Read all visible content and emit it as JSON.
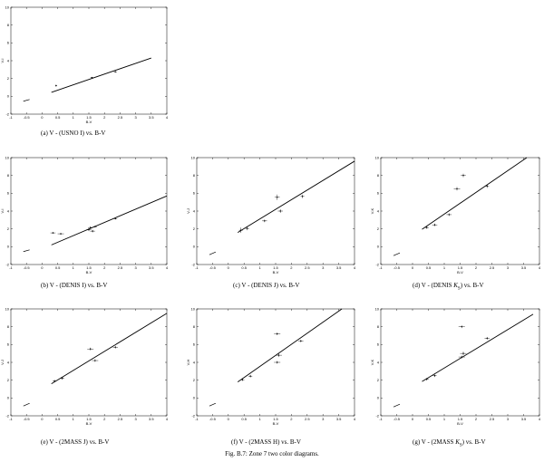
{
  "figure_caption": "Fig. B.7: Zone 7 two color diagrams.",
  "colors": {
    "axes": "#000000",
    "fit": "#000000",
    "points": "#000000"
  },
  "chart_data": [
    {
      "type": "scatter",
      "caption": "(a) V - (USNO I) vs. B-V",
      "xlabel": "B-V",
      "ylabel": "V-I",
      "xlim": [
        -1,
        4
      ],
      "ylim": [
        -2,
        10
      ],
      "xticks": [
        "-1",
        "-0.5",
        "0",
        "0.5",
        "1",
        "1.5",
        "2",
        "2.5",
        "3",
        "3.5",
        "4"
      ],
      "yticks": [
        "-2",
        "0",
        "2",
        "4",
        "6",
        "8",
        "10"
      ],
      "fit_line": {
        "x": [
          0.3,
          3.5
        ],
        "y": [
          0.45,
          4.3
        ]
      },
      "ref_line": {
        "x": [
          -0.6,
          -0.4
        ],
        "y": [
          -0.55,
          -0.35
        ]
      },
      "points": [
        {
          "x": 0.45,
          "y": 1.2,
          "xerr": 0.03,
          "yerr": 0.12
        },
        {
          "x": 1.6,
          "y": 2.1,
          "xerr": 0.05,
          "yerr": 0.08
        },
        {
          "x": 2.35,
          "y": 2.75,
          "xerr": 0.05,
          "yerr": 0.08
        }
      ]
    },
    {
      "type": "scatter",
      "caption": "(b) V - (DENIS I) vs. B-V",
      "xlabel": "B-V",
      "ylabel": "V-I",
      "xlim": [
        -1,
        4
      ],
      "ylim": [
        -2,
        10
      ],
      "xticks": [
        "-1",
        "-0.5",
        "0",
        "0.5",
        "1",
        "1.5",
        "2",
        "2.5",
        "3",
        "3.5",
        "4"
      ],
      "yticks": [
        "-2",
        "0",
        "2",
        "4",
        "6",
        "8",
        "10"
      ],
      "fit_line": {
        "x": [
          0.3,
          4.0
        ],
        "y": [
          0.2,
          5.7
        ]
      },
      "ref_line": {
        "x": [
          -0.6,
          -0.4
        ],
        "y": [
          -0.55,
          -0.35
        ]
      },
      "points": [
        {
          "x": 0.35,
          "y": 1.55,
          "xerr": 0.08,
          "yerr": 0.1
        },
        {
          "x": 0.6,
          "y": 1.45,
          "xerr": 0.1,
          "yerr": 0.1
        },
        {
          "x": 1.5,
          "y": 1.9,
          "xerr": 0.08,
          "yerr": 0.15
        },
        {
          "x": 1.55,
          "y": 2.15,
          "xerr": 0.08,
          "yerr": 0.12
        },
        {
          "x": 1.62,
          "y": 1.75,
          "xerr": 0.08,
          "yerr": 0.15
        },
        {
          "x": 1.7,
          "y": 2.25,
          "xerr": 0.06,
          "yerr": 0.1
        },
        {
          "x": 2.35,
          "y": 3.15,
          "xerr": 0.06,
          "yerr": 0.1
        }
      ]
    },
    {
      "type": "scatter",
      "caption": "(c) V - (DENIS J) vs. B-V",
      "xlabel": "B-V",
      "ylabel": "V-J",
      "xlim": [
        -1,
        4
      ],
      "ylim": [
        -2,
        10
      ],
      "xticks": [
        "-1",
        "-0.5",
        "0",
        "0.5",
        "1",
        "1.5",
        "2",
        "2.5",
        "3",
        "3.5",
        "4"
      ],
      "yticks": [
        "-2",
        "0",
        "2",
        "4",
        "6",
        "8",
        "10"
      ],
      "fit_line": {
        "x": [
          0.3,
          4.0
        ],
        "y": [
          1.6,
          9.6
        ]
      },
      "ref_line": {
        "x": [
          -0.6,
          -0.4
        ],
        "y": [
          -0.9,
          -0.6
        ]
      },
      "points": [
        {
          "x": 0.4,
          "y": 1.85,
          "xerr": 0.06,
          "yerr": 0.3
        },
        {
          "x": 0.6,
          "y": 2.05,
          "xerr": 0.06,
          "yerr": 0.2
        },
        {
          "x": 1.15,
          "y": 2.9,
          "xerr": 0.08,
          "yerr": 0.15
        },
        {
          "x": 1.55,
          "y": 5.55,
          "xerr": 0.08,
          "yerr": 0.3
        },
        {
          "x": 1.65,
          "y": 4.0,
          "xerr": 0.08,
          "yerr": 0.2
        },
        {
          "x": 2.35,
          "y": 5.65,
          "xerr": 0.06,
          "yerr": 0.2
        }
      ]
    },
    {
      "type": "scatter",
      "caption": "(d) V - (DENIS K_S) vs. B-V",
      "xlabel": "B-V",
      "ylabel": "V-K",
      "xlim": [
        -1,
        4
      ],
      "ylim": [
        -2,
        10
      ],
      "xticks": [
        "-1",
        "-0.5",
        "0",
        "0.5",
        "1",
        "1.5",
        "2",
        "2.5",
        "3",
        "3.5",
        "4"
      ],
      "yticks": [
        "-2",
        "0",
        "2",
        "4",
        "6",
        "8",
        "10"
      ],
      "fit_line": {
        "x": [
          0.3,
          3.6
        ],
        "y": [
          1.95,
          10.0
        ]
      },
      "ref_line": {
        "x": [
          -0.6,
          -0.4
        ],
        "y": [
          -1.0,
          -0.7
        ]
      },
      "points": [
        {
          "x": 0.45,
          "y": 2.15,
          "xerr": 0.06,
          "yerr": 0.15
        },
        {
          "x": 0.7,
          "y": 2.45,
          "xerr": 0.08,
          "yerr": 0.15
        },
        {
          "x": 1.15,
          "y": 3.6,
          "xerr": 0.08,
          "yerr": 0.15
        },
        {
          "x": 1.4,
          "y": 6.5,
          "xerr": 0.1,
          "yerr": 0.2
        },
        {
          "x": 1.6,
          "y": 8.0,
          "xerr": 0.08,
          "yerr": 0.2
        },
        {
          "x": 2.35,
          "y": 6.8,
          "xerr": 0.06,
          "yerr": 0.2
        }
      ]
    },
    {
      "type": "scatter",
      "caption": "(e) V - (2MASS J) vs. B-V",
      "xlabel": "B-V",
      "ylabel": "V-J",
      "xlim": [
        -1,
        4
      ],
      "ylim": [
        -2,
        10
      ],
      "xticks": [
        "-1",
        "-0.5",
        "0",
        "0.5",
        "1",
        "1.5",
        "2",
        "2.5",
        "3",
        "3.5",
        "4"
      ],
      "yticks": [
        "-2",
        "0",
        "2",
        "4",
        "6",
        "8",
        "10"
      ],
      "fit_line": {
        "x": [
          0.3,
          4.0
        ],
        "y": [
          1.6,
          9.5
        ]
      },
      "ref_line": {
        "x": [
          -0.6,
          -0.4
        ],
        "y": [
          -0.9,
          -0.6
        ]
      },
      "points": [
        {
          "x": 0.4,
          "y": 1.9,
          "xerr": 0.06,
          "yerr": 0.15
        },
        {
          "x": 0.65,
          "y": 2.2,
          "xerr": 0.06,
          "yerr": 0.15
        },
        {
          "x": 1.55,
          "y": 5.5,
          "xerr": 0.1,
          "yerr": 0.15
        },
        {
          "x": 1.7,
          "y": 4.2,
          "xerr": 0.1,
          "yerr": 0.15
        },
        {
          "x": 2.35,
          "y": 5.7,
          "xerr": 0.08,
          "yerr": 0.15
        }
      ]
    },
    {
      "type": "scatter",
      "caption": "(f) V - (2MASS H) vs. B-V",
      "xlabel": "B-V",
      "ylabel": "V-H",
      "xlim": [
        -1,
        4
      ],
      "ylim": [
        -2,
        10
      ],
      "xticks": [
        "-1",
        "-0.5",
        "0",
        "0.5",
        "1",
        "1.5",
        "2",
        "2.5",
        "3",
        "3.5",
        "4"
      ],
      "yticks": [
        "-2",
        "0",
        "2",
        "4",
        "6",
        "8",
        "10"
      ],
      "fit_line": {
        "x": [
          0.3,
          3.6
        ],
        "y": [
          1.8,
          10.0
        ]
      },
      "ref_line": {
        "x": [
          -0.6,
          -0.4
        ],
        "y": [
          -0.9,
          -0.6
        ]
      },
      "points": [
        {
          "x": 0.45,
          "y": 2.05,
          "xerr": 0.06,
          "yerr": 0.15
        },
        {
          "x": 0.7,
          "y": 2.45,
          "xerr": 0.06,
          "yerr": 0.15
        },
        {
          "x": 1.55,
          "y": 7.2,
          "xerr": 0.1,
          "yerr": 0.15
        },
        {
          "x": 1.6,
          "y": 4.8,
          "xerr": 0.1,
          "yerr": 0.2
        },
        {
          "x": 1.55,
          "y": 4.0,
          "xerr": 0.1,
          "yerr": 0.15
        },
        {
          "x": 2.3,
          "y": 6.4,
          "xerr": 0.08,
          "yerr": 0.15
        }
      ]
    },
    {
      "type": "scatter",
      "caption": "(g) V - (2MASS K_S) vs. B-V",
      "xlabel": "B-V",
      "ylabel": "V-K",
      "xlim": [
        -1,
        4
      ],
      "ylim": [
        -2,
        10
      ],
      "xticks": [
        "-1",
        "-0.5",
        "0",
        "0.5",
        "1",
        "1.5",
        "2",
        "2.5",
        "3",
        "3.5",
        "4"
      ],
      "yticks": [
        "-2",
        "0",
        "2",
        "4",
        "6",
        "8",
        "10"
      ],
      "fit_line": {
        "x": [
          0.3,
          3.8
        ],
        "y": [
          1.85,
          9.4
        ]
      },
      "ref_line": {
        "x": [
          -0.6,
          -0.4
        ],
        "y": [
          -1.0,
          -0.7
        ]
      },
      "points": [
        {
          "x": 0.45,
          "y": 2.1,
          "xerr": 0.06,
          "yerr": 0.15
        },
        {
          "x": 0.7,
          "y": 2.5,
          "xerr": 0.06,
          "yerr": 0.15
        },
        {
          "x": 1.55,
          "y": 8.0,
          "xerr": 0.1,
          "yerr": 0.15
        },
        {
          "x": 1.6,
          "y": 5.0,
          "xerr": 0.1,
          "yerr": 0.2
        },
        {
          "x": 1.55,
          "y": 4.6,
          "xerr": 0.1,
          "yerr": 0.15
        },
        {
          "x": 2.35,
          "y": 6.7,
          "xerr": 0.08,
          "yerr": 0.15
        }
      ]
    }
  ]
}
